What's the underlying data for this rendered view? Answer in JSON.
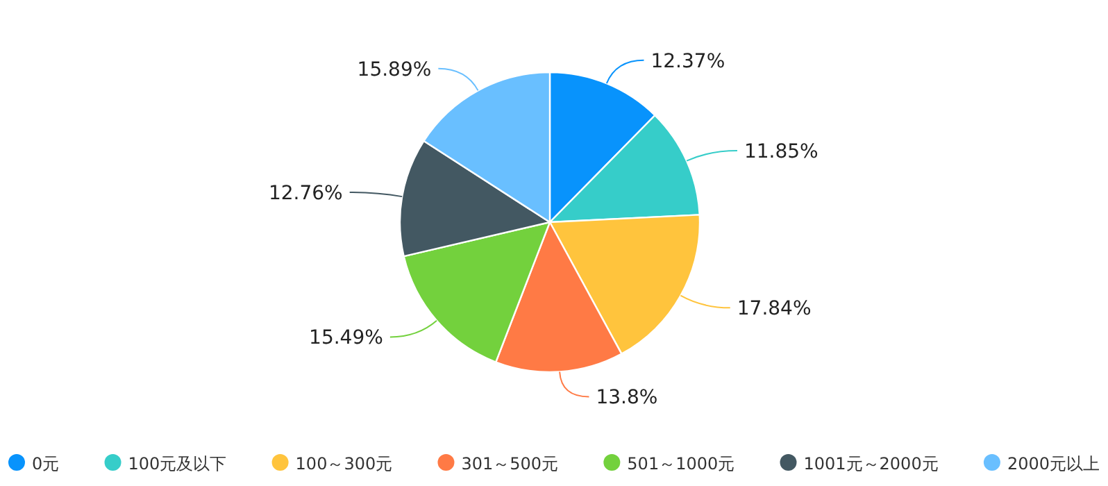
{
  "chart_data": {
    "type": "pie",
    "categories": [
      "0元",
      "100元及以下",
      "100～300元",
      "301～500元",
      "501～1000元",
      "1001元～2000元",
      "2000元以上"
    ],
    "values": [
      12.37,
      11.85,
      17.84,
      13.8,
      15.49,
      12.76,
      15.89
    ],
    "value_labels": [
      "12.37%",
      "11.85%",
      "17.84%",
      "13.8%",
      "15.49%",
      "12.76%",
      "15.89%"
    ],
    "colors": [
      "#0893fc",
      "#36cdc9",
      "#ffc43d",
      "#ff7a45",
      "#73d13d",
      "#435862",
      "#69bfff"
    ],
    "legend": "bottom"
  }
}
